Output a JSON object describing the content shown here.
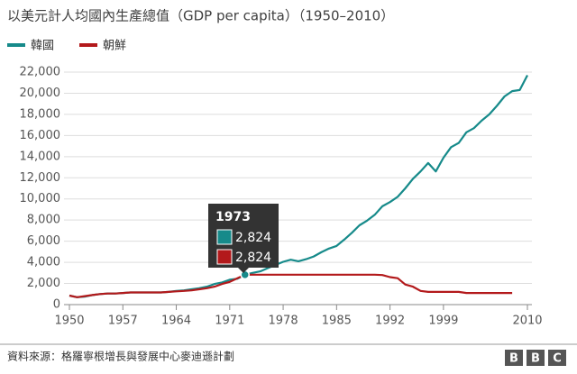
{
  "chart_data": {
    "type": "line",
    "title": "以美元計人均國內生產總值（GDP per capita）（1950–2010）",
    "x": [
      1950,
      1951,
      1952,
      1953,
      1954,
      1955,
      1956,
      1957,
      1958,
      1959,
      1960,
      1961,
      1962,
      1963,
      1964,
      1965,
      1966,
      1967,
      1968,
      1969,
      1970,
      1971,
      1972,
      1973,
      1974,
      1975,
      1976,
      1977,
      1978,
      1979,
      1980,
      1981,
      1982,
      1983,
      1984,
      1985,
      1986,
      1987,
      1988,
      1989,
      1990,
      1991,
      1992,
      1993,
      1994,
      1995,
      1996,
      1997,
      1998,
      1999,
      2000,
      2001,
      2002,
      2003,
      2004,
      2005,
      2006,
      2007,
      2008,
      2009,
      2010
    ],
    "series": [
      {
        "name": "韓國",
        "color": "#168a8a",
        "values": [
          850,
          700,
          750,
          900,
          1000,
          1050,
          1050,
          1100,
          1150,
          1150,
          1150,
          1150,
          1150,
          1200,
          1300,
          1350,
          1450,
          1550,
          1700,
          1950,
          2100,
          2350,
          2450,
          2824,
          3000,
          3150,
          3450,
          3750,
          4050,
          4250,
          4100,
          4300,
          4550,
          4950,
          5300,
          5550,
          6150,
          6800,
          7500,
          7950,
          8500,
          9300,
          9700,
          10200,
          11000,
          11900,
          12600,
          13400,
          12600,
          13900,
          14900,
          15300,
          16300,
          16700,
          17400,
          18000,
          18800,
          19700,
          20200,
          20300,
          21700
        ]
      },
      {
        "name": "朝鮮",
        "color": "#b3191b",
        "values": [
          850,
          700,
          800,
          900,
          1000,
          1050,
          1050,
          1100,
          1150,
          1150,
          1150,
          1150,
          1150,
          1200,
          1250,
          1300,
          1350,
          1450,
          1550,
          1700,
          1950,
          2150,
          2500,
          2824,
          2830,
          2830,
          2830,
          2830,
          2830,
          2830,
          2830,
          2830,
          2830,
          2830,
          2830,
          2830,
          2830,
          2830,
          2830,
          2830,
          2830,
          2800,
          2600,
          2500,
          1900,
          1700,
          1300,
          1200,
          1200,
          1200,
          1200,
          1200,
          1100,
          1100,
          1100,
          1100,
          1100,
          1100,
          1100,
          null,
          null
        ]
      }
    ],
    "ylim": [
      0,
      22000
    ],
    "yticks": [
      0,
      {
        "value": 2000,
        "label": "2,000"
      },
      {
        "value": 4000,
        "label": "4,000"
      },
      {
        "value": 6000,
        "label": "6,000"
      },
      {
        "value": 8000,
        "label": "8,000"
      },
      {
        "value": 10000,
        "label": "10,000"
      },
      {
        "value": 12000,
        "label": "12,000"
      },
      {
        "value": 14000,
        "label": "14,000"
      },
      {
        "value": 16000,
        "label": "16,000"
      },
      {
        "value": 18000,
        "label": "18,000"
      },
      {
        "value": 20000,
        "label": "20,000"
      },
      {
        "value": 22000,
        "label": "22,000"
      }
    ],
    "xlim": [
      1950,
      2010
    ],
    "xticks": [
      1950,
      1957,
      1964,
      1971,
      1978,
      1985,
      1992,
      1999,
      2010
    ],
    "grid": true,
    "legend": "top-left",
    "tooltip": {
      "value_labels": [
        "2,824",
        "2,824"
      ]
    },
    "source": "資料來源：格羅寧根增長與發展中心麥迪遜計劃",
    "logo": [
      "B",
      "B",
      "C"
    ]
  }
}
